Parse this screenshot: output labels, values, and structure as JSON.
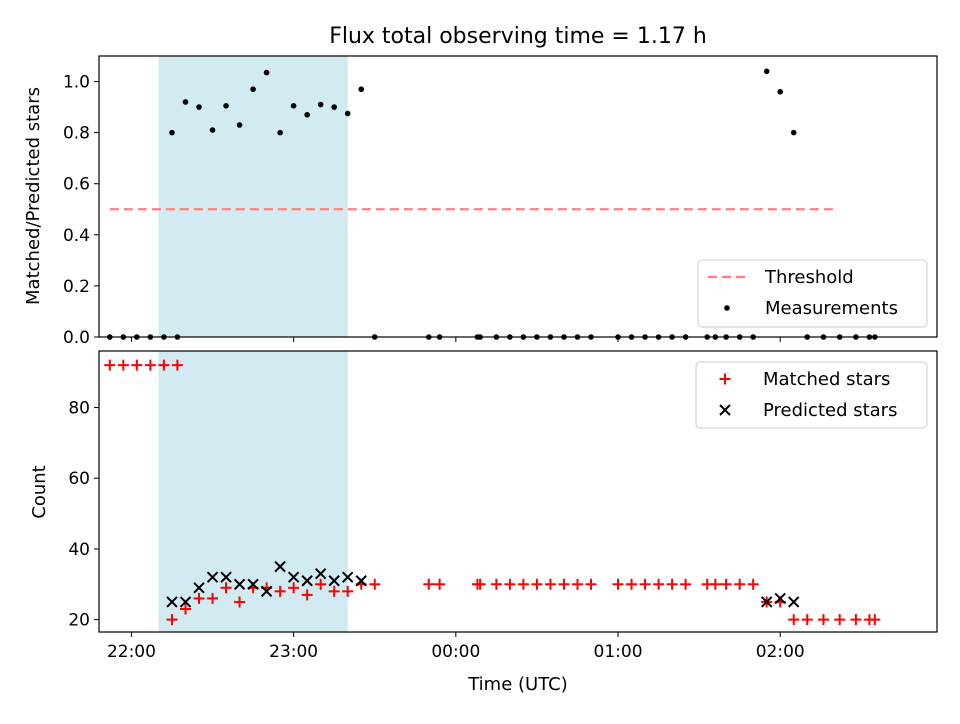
{
  "chart_data": [
    {
      "type": "scatter",
      "title": "Flux total observing time = 1.17 h",
      "ylabel": "Matched/Predicted stars",
      "xlabel": "",
      "xlim": [
        "21:48",
        "02:58"
      ],
      "ylim": [
        0.0,
        1.1
      ],
      "yticks": [
        "0.0",
        "0.2",
        "0.4",
        "0.6",
        "0.8",
        "1.0"
      ],
      "shaded_span": [
        "22:10",
        "23:20"
      ],
      "shade_color": "#add8e6",
      "legend": {
        "position": "lower-right",
        "entries": [
          "Threshold",
          "Measurements"
        ]
      },
      "threshold": {
        "name": "Threshold",
        "value": 0.5,
        "x_from": "21:52",
        "x_to": "02:20",
        "color": "#ff7f7f",
        "style": "dashed"
      },
      "series": [
        {
          "name": "Measurements",
          "color": "#000000",
          "marker": "dot",
          "points": [
            [
              "21:52",
              0
            ],
            [
              "21:57",
              0
            ],
            [
              "22:02",
              0
            ],
            [
              "22:07",
              0
            ],
            [
              "22:12",
              0
            ],
            [
              "22:17",
              0
            ],
            [
              "22:15",
              0.8
            ],
            [
              "22:20",
              0.92
            ],
            [
              "22:25",
              0.9
            ],
            [
              "22:30",
              0.81
            ],
            [
              "22:35",
              0.905
            ],
            [
              "22:40",
              0.83
            ],
            [
              "22:45",
              0.97
            ],
            [
              "22:50",
              1.035
            ],
            [
              "22:55",
              0.8
            ],
            [
              "23:00",
              0.905
            ],
            [
              "23:05",
              0.87
            ],
            [
              "23:10",
              0.91
            ],
            [
              "23:15",
              0.9
            ],
            [
              "23:20",
              0.875
            ],
            [
              "23:25",
              0.97
            ],
            [
              "23:30",
              0
            ],
            [
              "23:50",
              0
            ],
            [
              "23:54",
              0
            ],
            [
              "00:08",
              0
            ],
            [
              "00:09",
              0
            ],
            [
              "00:15",
              0
            ],
            [
              "00:20",
              0
            ],
            [
              "00:25",
              0
            ],
            [
              "00:30",
              0
            ],
            [
              "00:35",
              0
            ],
            [
              "00:40",
              0
            ],
            [
              "00:45",
              0
            ],
            [
              "00:50",
              0
            ],
            [
              "01:00",
              0
            ],
            [
              "01:05",
              0
            ],
            [
              "01:10",
              0
            ],
            [
              "01:15",
              0
            ],
            [
              "01:20",
              0
            ],
            [
              "01:25",
              0
            ],
            [
              "01:33",
              0
            ],
            [
              "01:36",
              0
            ],
            [
              "01:40",
              0
            ],
            [
              "01:45",
              0
            ],
            [
              "01:50",
              0
            ],
            [
              "01:55",
              1.04
            ],
            [
              "02:00",
              0.96
            ],
            [
              "02:05",
              0.8
            ],
            [
              "02:10",
              0
            ],
            [
              "02:16",
              0
            ],
            [
              "02:22",
              0
            ],
            [
              "02:28",
              0
            ],
            [
              "02:33",
              0
            ],
            [
              "02:35",
              0
            ]
          ]
        }
      ]
    },
    {
      "type": "scatter",
      "title": "",
      "xlabel": "Time (UTC)",
      "ylabel": "Count",
      "xlim": [
        "21:48",
        "02:58"
      ],
      "ylim": [
        16.5,
        96
      ],
      "xticks": [
        "22:00",
        "23:00",
        "00:00",
        "01:00",
        "02:00"
      ],
      "yticks": [
        "20",
        "40",
        "60",
        "80"
      ],
      "shaded_span": [
        "22:10",
        "23:20"
      ],
      "shade_color": "#add8e6",
      "legend": {
        "position": "upper-right",
        "entries": [
          "Matched stars",
          "Predicted stars"
        ]
      },
      "series": [
        {
          "name": "Matched stars",
          "color": "#ff0000",
          "marker": "plus",
          "points": [
            [
              "21:52",
              92
            ],
            [
              "21:57",
              92
            ],
            [
              "22:02",
              92
            ],
            [
              "22:07",
              92
            ],
            [
              "22:12",
              92
            ],
            [
              "22:17",
              92
            ],
            [
              "22:15",
              20
            ],
            [
              "22:20",
              23
            ],
            [
              "22:25",
              26
            ],
            [
              "22:30",
              26
            ],
            [
              "22:35",
              29
            ],
            [
              "22:40",
              25
            ],
            [
              "22:45",
              29
            ],
            [
              "22:50",
              29
            ],
            [
              "22:55",
              28
            ],
            [
              "23:00",
              29
            ],
            [
              "23:05",
              27
            ],
            [
              "23:10",
              30
            ],
            [
              "23:15",
              28
            ],
            [
              "23:20",
              28
            ],
            [
              "23:25",
              30
            ],
            [
              "23:30",
              30
            ],
            [
              "23:50",
              30
            ],
            [
              "23:54",
              30
            ],
            [
              "00:08",
              30
            ],
            [
              "00:09",
              30
            ],
            [
              "00:15",
              30
            ],
            [
              "00:20",
              30
            ],
            [
              "00:25",
              30
            ],
            [
              "00:30",
              30
            ],
            [
              "00:35",
              30
            ],
            [
              "00:40",
              30
            ],
            [
              "00:45",
              30
            ],
            [
              "00:50",
              30
            ],
            [
              "01:00",
              30
            ],
            [
              "01:05",
              30
            ],
            [
              "01:10",
              30
            ],
            [
              "01:15",
              30
            ],
            [
              "01:20",
              30
            ],
            [
              "01:25",
              30
            ],
            [
              "01:33",
              30
            ],
            [
              "01:36",
              30
            ],
            [
              "01:40",
              30
            ],
            [
              "01:45",
              30
            ],
            [
              "01:50",
              30
            ],
            [
              "01:55",
              25
            ],
            [
              "02:00",
              25
            ],
            [
              "02:05",
              20
            ],
            [
              "02:10",
              20
            ],
            [
              "02:16",
              20
            ],
            [
              "02:22",
              20
            ],
            [
              "02:28",
              20
            ],
            [
              "02:33",
              20
            ],
            [
              "02:35",
              20
            ]
          ]
        },
        {
          "name": "Predicted stars",
          "color": "#000000",
          "marker": "x",
          "points": [
            [
              "22:15",
              25
            ],
            [
              "22:20",
              25
            ],
            [
              "22:25",
              29
            ],
            [
              "22:30",
              32
            ],
            [
              "22:35",
              32
            ],
            [
              "22:40",
              30
            ],
            [
              "22:45",
              30
            ],
            [
              "22:50",
              28
            ],
            [
              "22:55",
              35
            ],
            [
              "23:00",
              32
            ],
            [
              "23:05",
              31
            ],
            [
              "23:10",
              33
            ],
            [
              "23:15",
              31
            ],
            [
              "23:20",
              32
            ],
            [
              "23:25",
              31
            ],
            [
              "01:55",
              25
            ],
            [
              "02:00",
              26
            ],
            [
              "02:05",
              25
            ]
          ]
        }
      ]
    }
  ]
}
